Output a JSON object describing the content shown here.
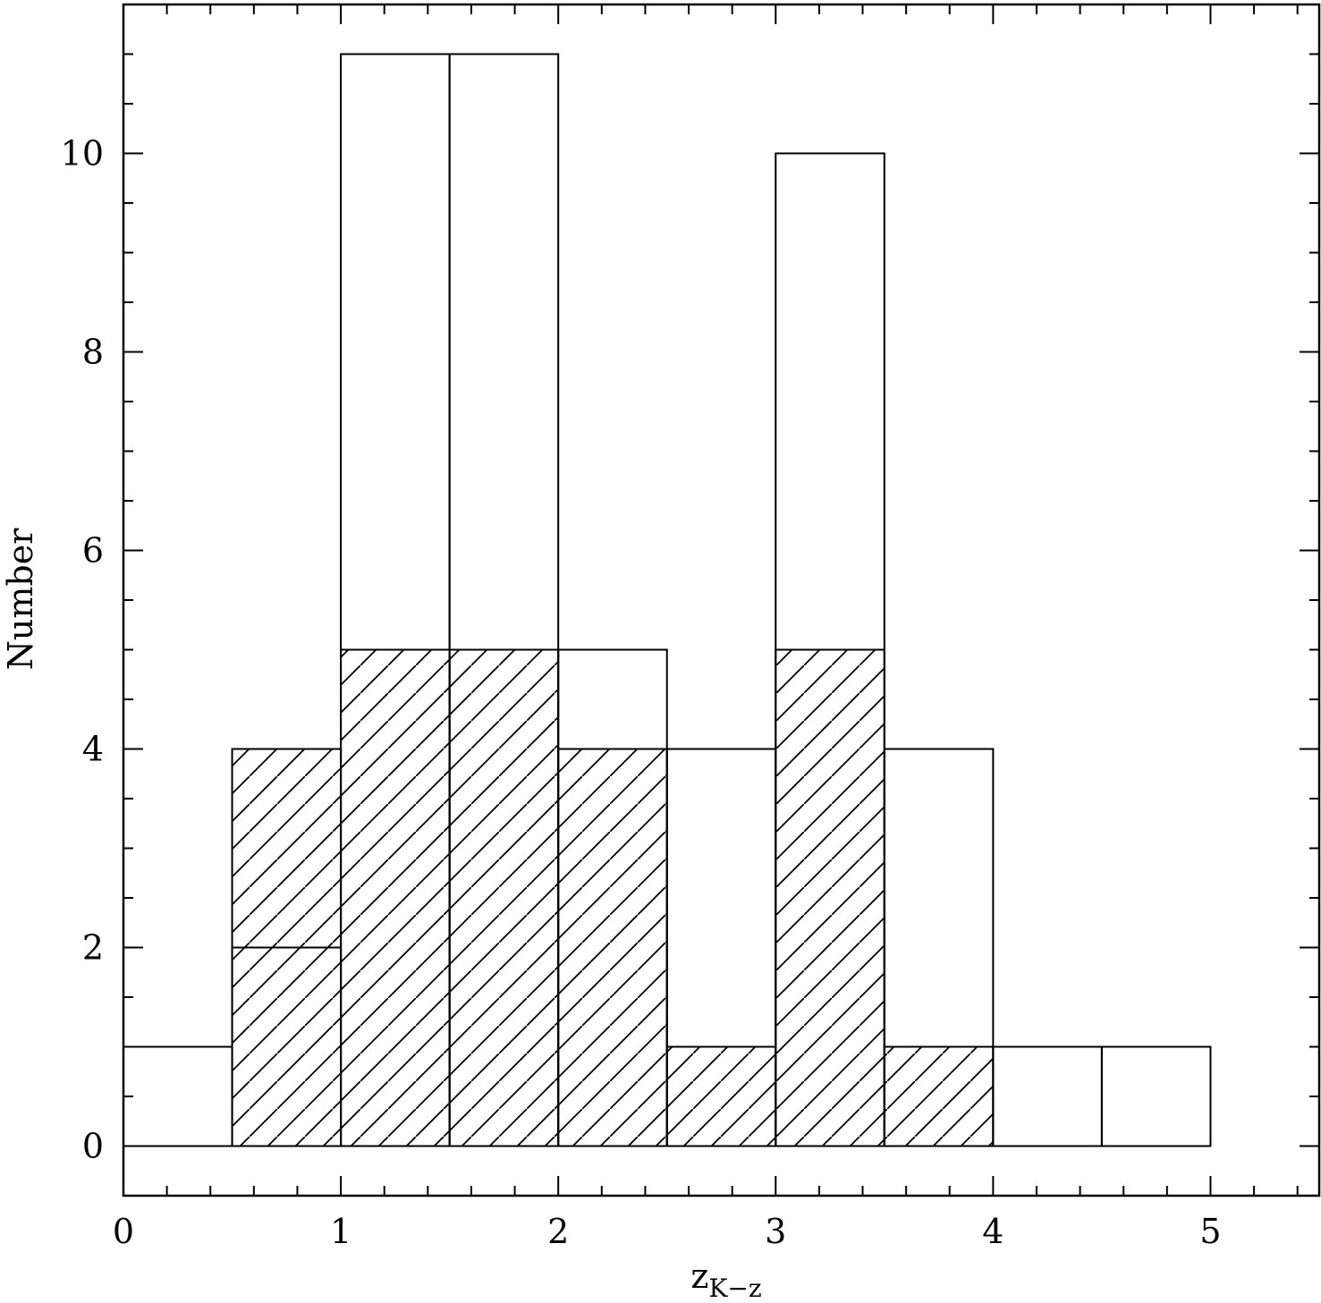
{
  "chart_data": {
    "type": "histogram",
    "x_label": "z",
    "x_label_sub": "K−z",
    "y_label": "Number",
    "bins": [
      0,
      0.5,
      1,
      1.5,
      2,
      2.5,
      3,
      3.5,
      4,
      4.5,
      5,
      5.5
    ],
    "series": [
      {
        "color": "#000000",
        "hatched": false,
        "values": [
          1,
          2,
          11,
          11,
          5,
          4,
          10,
          4,
          1,
          1,
          0
        ]
      },
      {
        "color": "#000000",
        "hatched": true,
        "values": [
          0,
          4,
          5,
          5,
          4,
          1,
          5,
          1,
          0,
          0,
          0
        ]
      }
    ],
    "xlim": [
      0,
      5.5
    ],
    "ylim": [
      -0.5,
      11.5
    ],
    "xticks": [
      0,
      1,
      2,
      3,
      4,
      5
    ],
    "yticks": [
      0,
      2,
      4,
      6,
      8,
      10
    ],
    "xminorticks": [
      0.2,
      0.4,
      0.6,
      0.8,
      1.2,
      1.4,
      1.6,
      1.8,
      2.2,
      2.4,
      2.6,
      2.8,
      3.2,
      3.4,
      3.6,
      3.8,
      4.2,
      4.4,
      4.6,
      4.8,
      5.2,
      5.4
    ],
    "yminorticks": [
      -0.5,
      0.5,
      1,
      1.5,
      2.5,
      3,
      3.5,
      4.5,
      5,
      5.5,
      6.5,
      7,
      7.5,
      8.5,
      9,
      9.5,
      10.5,
      11,
      11.5
    ]
  }
}
